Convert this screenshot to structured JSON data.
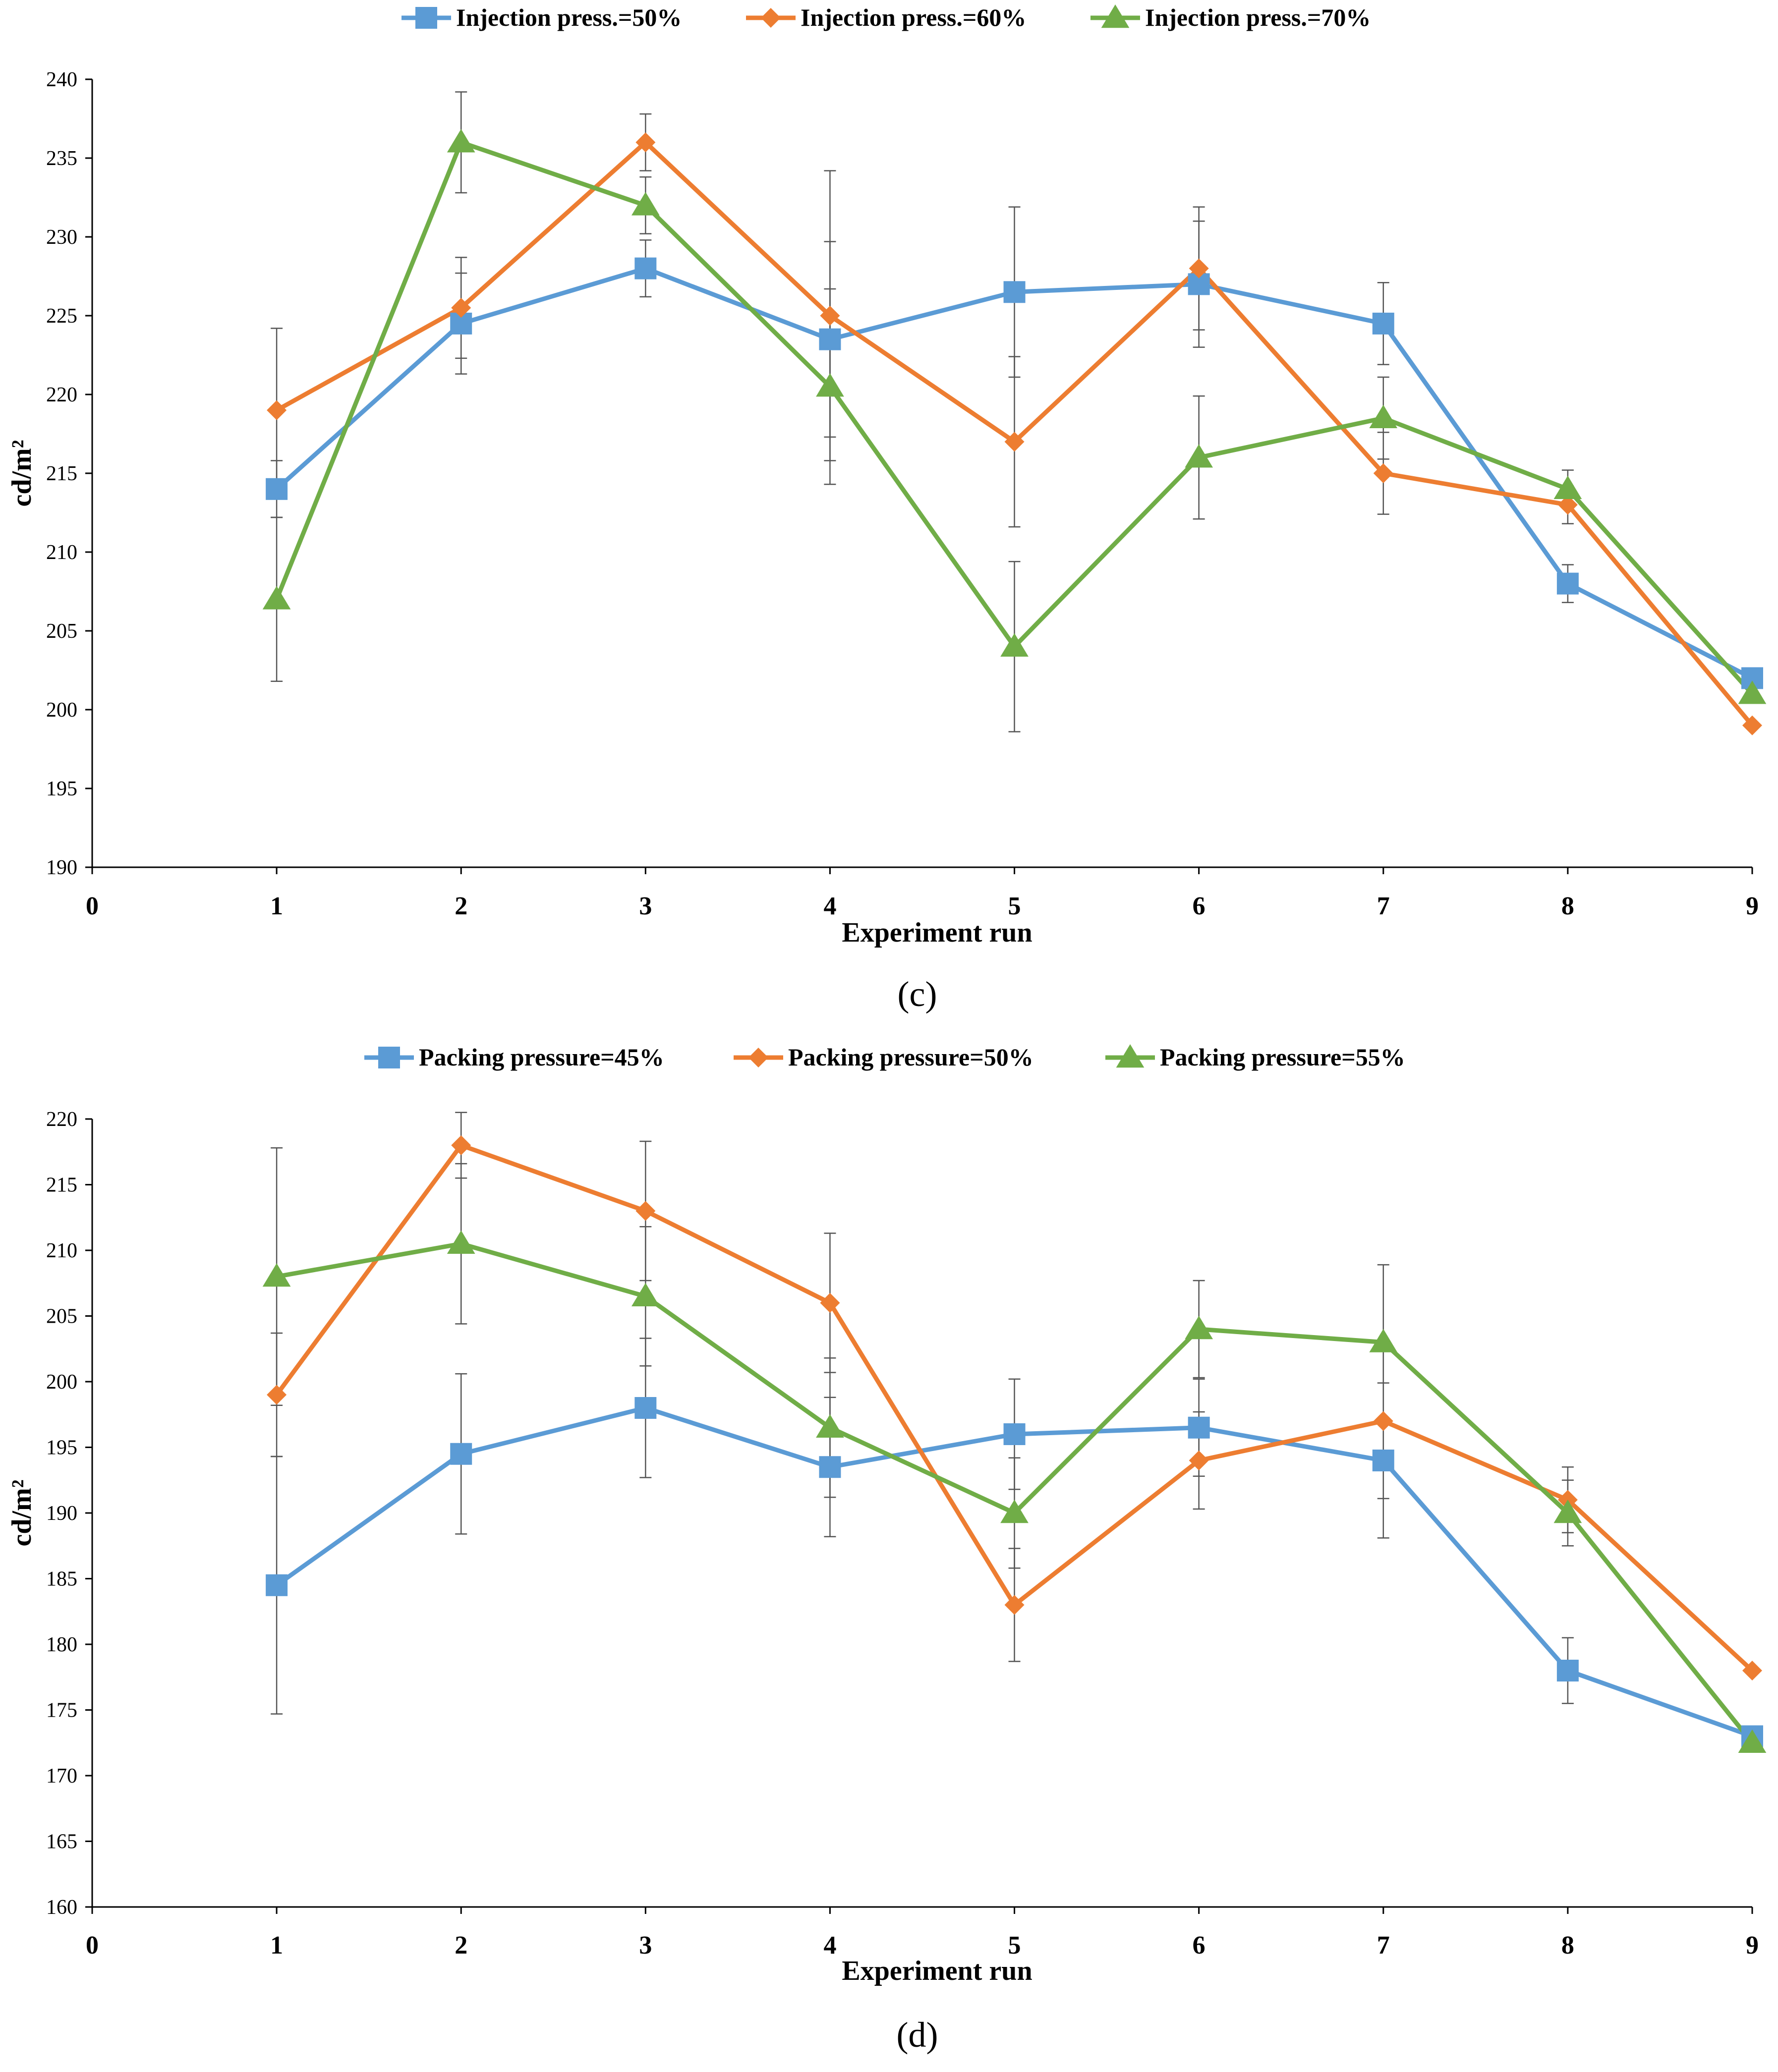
{
  "chart_data": [
    {
      "type": "line",
      "panel_label": "(c)",
      "xlabel": "Experiment run",
      "ylabel": "cd/m²",
      "xlim": [
        0,
        9
      ],
      "ylim": [
        190,
        240
      ],
      "x_ticks": [
        "0",
        "1",
        "2",
        "3",
        "4",
        "5",
        "6",
        "7",
        "8",
        "9"
      ],
      "y_ticks": [
        "190",
        "195",
        "200",
        "205",
        "210",
        "215",
        "220",
        "225",
        "230",
        "235",
        "240"
      ],
      "x": [
        1,
        2,
        3,
        4,
        5,
        6,
        7,
        8,
        9
      ],
      "legend_position": "top",
      "series": [
        {
          "name": "Injection press.=50%",
          "color": "#5B9BD5",
          "marker": "square",
          "values": [
            214,
            224.5,
            228,
            223.5,
            226.5,
            227,
            224.5,
            208,
            202
          ],
          "errors": [
            1.8,
            3.2,
            1.8,
            6.2,
            5.4,
            4,
            2.6,
            1.2,
            0
          ]
        },
        {
          "name": "Injection press.=60%",
          "color": "#ED7D31",
          "marker": "diamond",
          "values": [
            219,
            225.5,
            236,
            225,
            217,
            228,
            215,
            213,
            199
          ],
          "errors": [
            5.2,
            3.2,
            1.8,
            9.2,
            5.4,
            3.9,
            2.6,
            1.2,
            0
          ]
        },
        {
          "name": "Injection press.=70%",
          "color": "#70AD47",
          "marker": "triangle",
          "values": [
            207,
            236,
            232,
            220.5,
            204,
            216,
            218.5,
            214,
            201
          ],
          "errors": [
            5.2,
            3.2,
            1.8,
            6.2,
            5.4,
            3.9,
            2.6,
            1.2,
            0
          ]
        }
      ]
    },
    {
      "type": "line",
      "panel_label": "(d)",
      "xlabel": "Experiment run",
      "ylabel": "cd/m²",
      "xlim": [
        0,
        9
      ],
      "ylim": [
        160,
        220
      ],
      "x_ticks": [
        "0",
        "1",
        "2",
        "3",
        "4",
        "5",
        "6",
        "7",
        "8",
        "9"
      ],
      "y_ticks": [
        "160",
        "165",
        "170",
        "175",
        "180",
        "185",
        "190",
        "195",
        "200",
        "205",
        "210",
        "215",
        "220"
      ],
      "x": [
        1,
        2,
        3,
        4,
        5,
        6,
        7,
        8,
        9
      ],
      "legend_position": "top",
      "series": [
        {
          "name": "Packing pressure=45%",
          "color": "#5B9BD5",
          "marker": "square",
          "values": [
            184.5,
            194.5,
            198,
            193.5,
            196,
            196.5,
            194,
            178,
            173
          ],
          "errors": [
            9.8,
            6.1,
            5.3,
            5.3,
            4.2,
            3.7,
            5.9,
            2.5,
            0
          ]
        },
        {
          "name": "Packing pressure=50%",
          "color": "#ED7D31",
          "marker": "diamond",
          "values": [
            199,
            218,
            213,
            206,
            183,
            194,
            197,
            191,
            178
          ],
          "errors": [
            4.7,
            2.5,
            5.3,
            5.3,
            4.3,
            3.7,
            5.9,
            2.5,
            0
          ]
        },
        {
          "name": "Packing pressure=55%",
          "color": "#70AD47",
          "marker": "triangle",
          "values": [
            208,
            210.5,
            206.5,
            196.5,
            190,
            204,
            203,
            190,
            172.5
          ],
          "errors": [
            9.8,
            6.1,
            5.3,
            5.3,
            4.2,
            3.7,
            5.9,
            2.5,
            0
          ]
        }
      ]
    }
  ]
}
